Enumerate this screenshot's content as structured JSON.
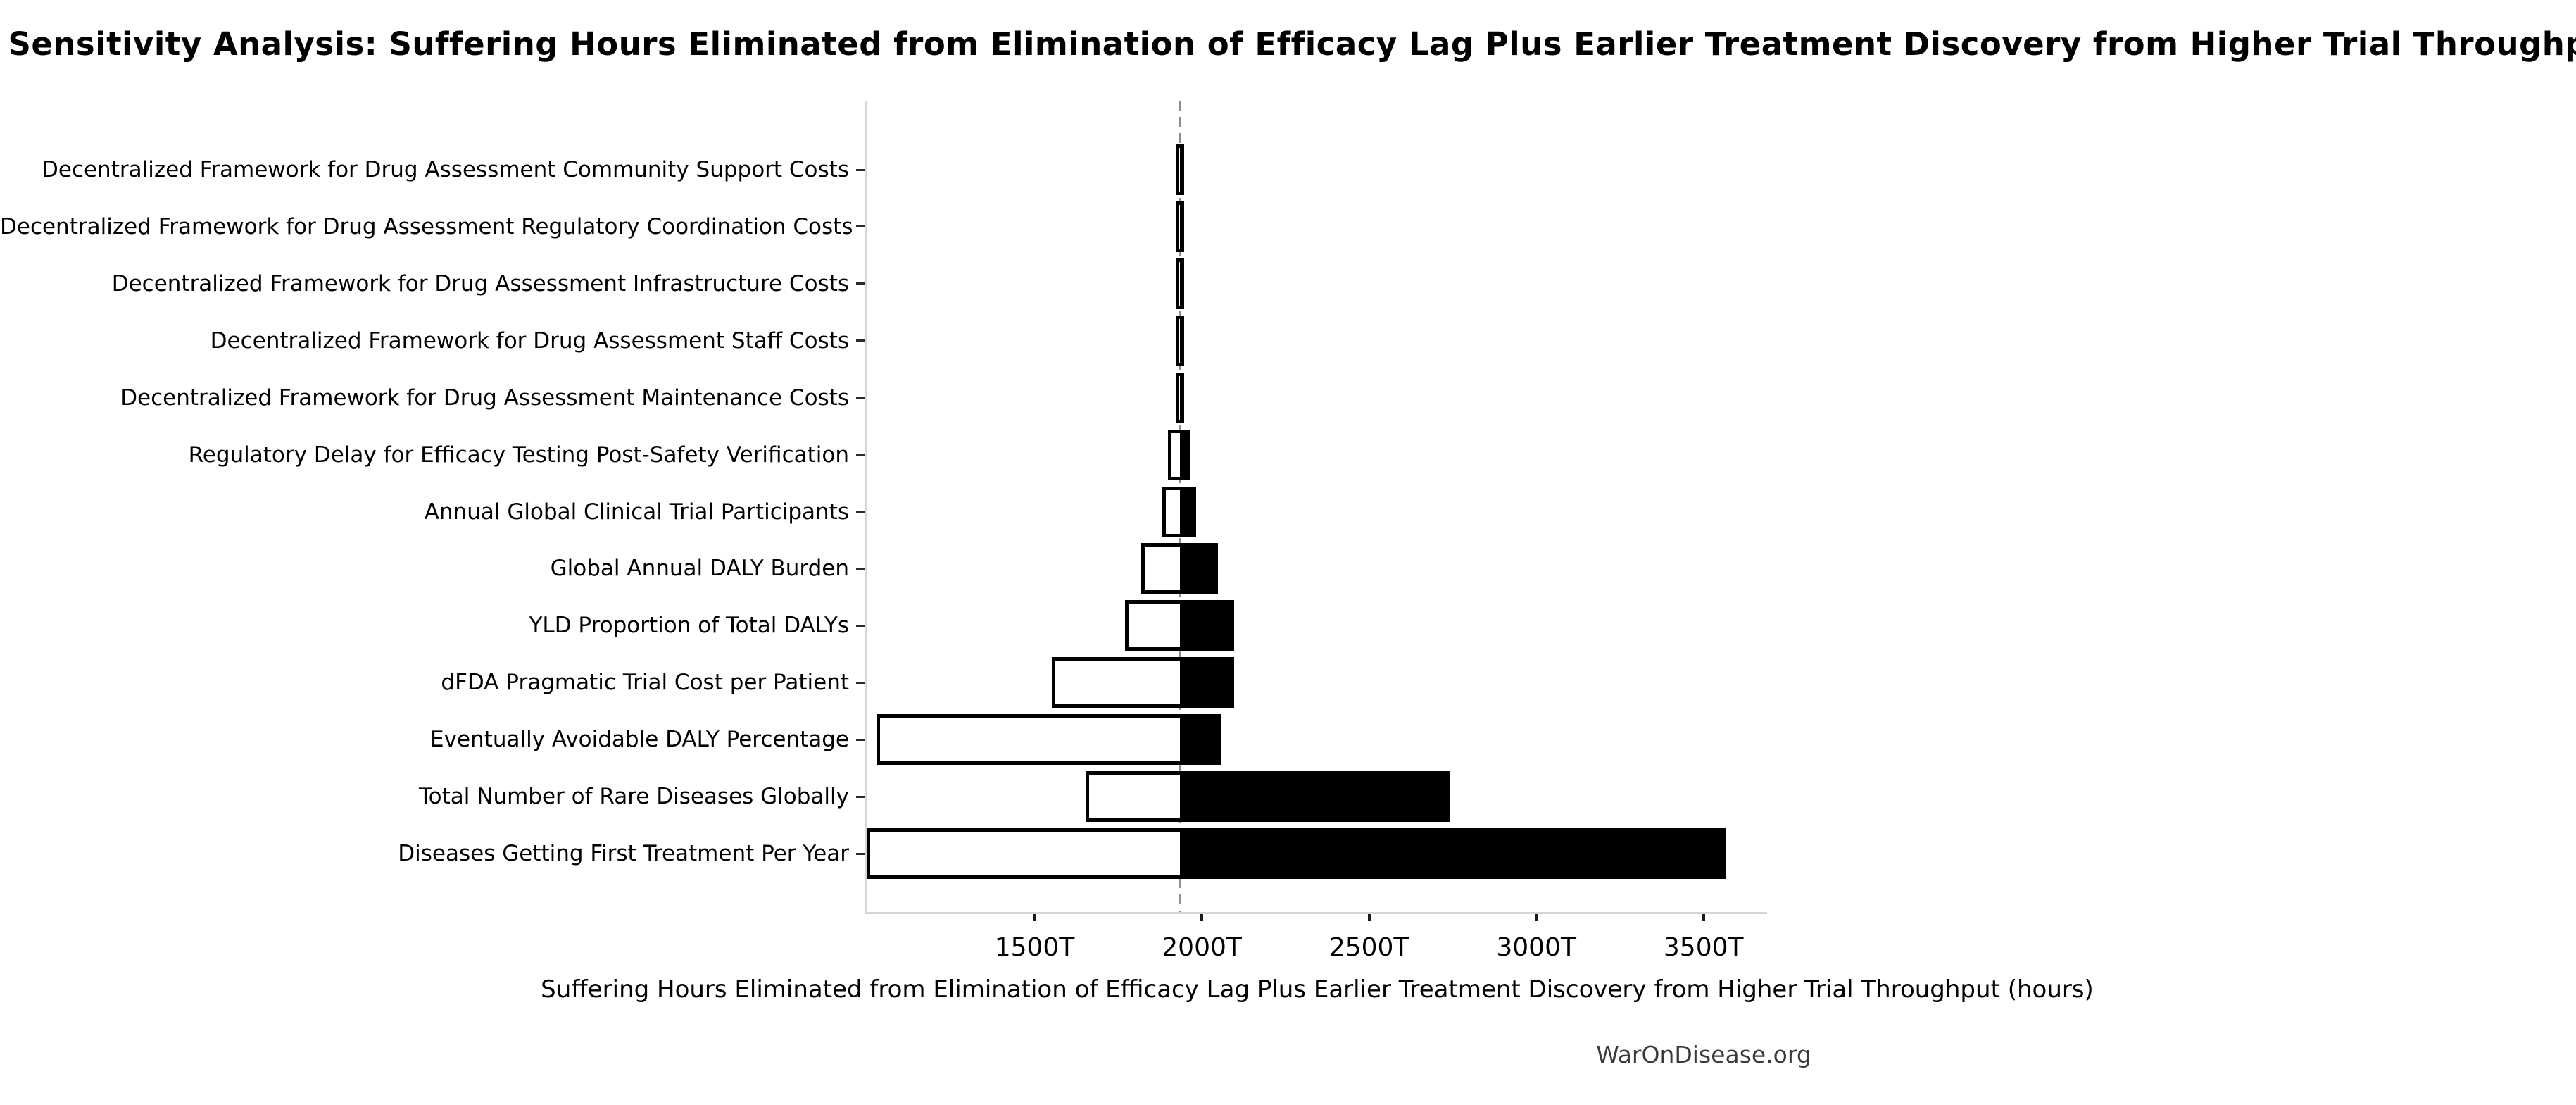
{
  "title": "Sensitivity Analysis: Suffering Hours Eliminated from Elimination of Efficacy Lag Plus Earlier Treatment Discovery from Higher Trial Throughput",
  "xlabel": "Suffering Hours Eliminated from Elimination of Efficacy Lag Plus Earlier Treatment Discovery from Higher Trial Throughput (hours)",
  "footer": "WarOnDisease.org",
  "chart_data": {
    "type": "bar",
    "subtype": "tornado-sensitivity",
    "orientation": "horizontal",
    "unit": "T (trillions of hours)",
    "title": "Sensitivity Analysis: Suffering Hours Eliminated from Elimination of Efficacy Lag Plus Earlier Treatment Discovery from Higher Trial Throughput",
    "xlabel": "Suffering Hours Eliminated from Elimination of Efficacy Lag Plus Earlier Treatment Discovery from Higher Trial Throughput (hours)",
    "base_value": 1935,
    "xlim": [
      1000,
      3690
    ],
    "x_ticks": [
      1500,
      2000,
      2500,
      3000,
      3500
    ],
    "x_tick_labels": [
      "1500T",
      "2000T",
      "2500T",
      "3000T",
      "3500T"
    ],
    "grid": false,
    "legend": "none",
    "colors": {
      "low_fill": "#ffffff",
      "high_fill": "#000000",
      "edge": "#000000",
      "baseline": "#8f8f8f",
      "spine": "#d6d6d6"
    },
    "rows": [
      {
        "label": "Decentralized Framework for Drug Assessment Community Support Costs",
        "low": 1933,
        "high": 1937
      },
      {
        "label": "Decentralized Framework for Drug Assessment Regulatory Coordination Costs",
        "low": 1933,
        "high": 1937
      },
      {
        "label": "Decentralized Framework for Drug Assessment Infrastructure Costs",
        "low": 1933,
        "high": 1937
      },
      {
        "label": "Decentralized Framework for Drug Assessment Staff Costs",
        "low": 1933,
        "high": 1937
      },
      {
        "label": "Decentralized Framework for Drug Assessment Maintenance Costs",
        "low": 1933,
        "high": 1937
      },
      {
        "label": "Regulatory Delay for Efficacy Testing Post-Safety Verification",
        "low": 1910,
        "high": 1955
      },
      {
        "label": "Annual Global Clinical Trial Participants",
        "low": 1893,
        "high": 1972
      },
      {
        "label": "Global Annual DALY Burden",
        "low": 1829,
        "high": 2038
      },
      {
        "label": "YLD Proportion of Total DALYs",
        "low": 1781,
        "high": 2086
      },
      {
        "label": "dFDA Pragmatic Trial Cost per Patient",
        "low": 1562,
        "high": 2086
      },
      {
        "label": "Eventually Avoidable DALY Percentage",
        "low": 1038,
        "high": 2046
      },
      {
        "label": "Total Number of Rare Diseases Globally",
        "low": 1664,
        "high": 2731
      },
      {
        "label": "Diseases Getting First Treatment Per Year",
        "low": 1008,
        "high": 3558
      }
    ]
  }
}
